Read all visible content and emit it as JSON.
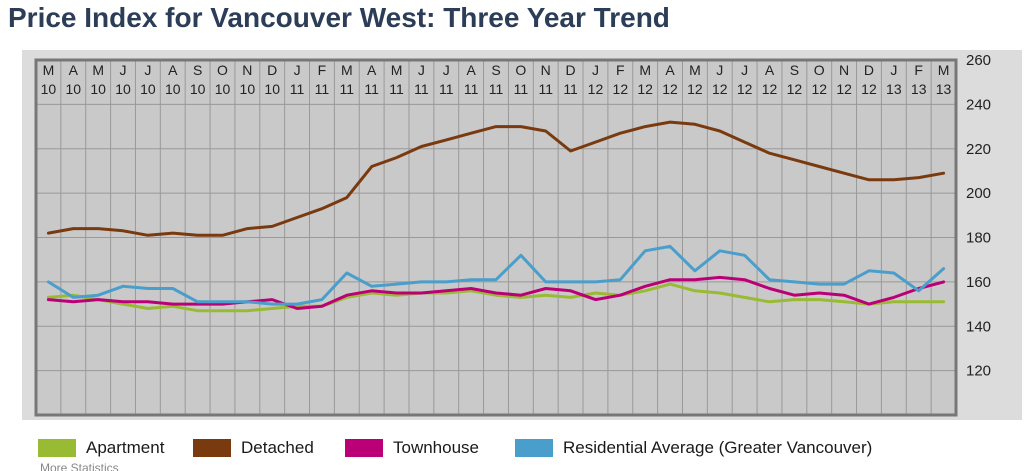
{
  "title": "Price Index for Vancouver West: Three Year Trend",
  "footer_fragment": "More Statistics",
  "colors": {
    "page_bg": "#ffffff",
    "plot_bg": "#c9c9c9",
    "outer_bg": "#dcdcdc",
    "grid": "#999999",
    "frame": "#777777",
    "axis_text": "#222222",
    "title": "#2b3d57"
  },
  "chart_data": {
    "type": "line",
    "title": "Price Index for Vancouver West: Three Year Trend",
    "xlabel": "",
    "ylabel": "",
    "ylim": [
      100,
      260
    ],
    "yticks": [
      120,
      140,
      160,
      180,
      200,
      220,
      240,
      260
    ],
    "y_axis_side": "right",
    "x_axis_side": "top",
    "grid": true,
    "legend_position": "bottom",
    "x_tick_months": [
      "M",
      "A",
      "M",
      "J",
      "J",
      "A",
      "S",
      "O",
      "N",
      "D",
      "J",
      "F",
      "M",
      "A",
      "M",
      "J",
      "J",
      "A",
      "S",
      "O",
      "N",
      "D",
      "J",
      "F",
      "M",
      "A",
      "M",
      "J",
      "J",
      "A",
      "S",
      "O",
      "N",
      "D",
      "J",
      "F",
      "M"
    ],
    "x_tick_years": [
      "10",
      "10",
      "10",
      "10",
      "10",
      "10",
      "10",
      "10",
      "10",
      "10",
      "11",
      "11",
      "11",
      "11",
      "11",
      "11",
      "11",
      "11",
      "11",
      "11",
      "11",
      "11",
      "12",
      "12",
      "12",
      "12",
      "12",
      "12",
      "12",
      "12",
      "12",
      "12",
      "12",
      "12",
      "13",
      "13",
      "13"
    ],
    "series": [
      {
        "name": "Apartment",
        "color": "#99bb33",
        "values": [
          153,
          154,
          152,
          150,
          148,
          149,
          147,
          147,
          147,
          148,
          149,
          149,
          153,
          155,
          154,
          155,
          155,
          156,
          154,
          153,
          154,
          153,
          155,
          154,
          156,
          159,
          156,
          155,
          153,
          151,
          152,
          152,
          151,
          150,
          151,
          151,
          151
        ]
      },
      {
        "name": "Detached",
        "color": "#7a3a10",
        "values": [
          182,
          184,
          184,
          183,
          181,
          182,
          181,
          181,
          184,
          185,
          189,
          193,
          198,
          212,
          216,
          221,
          224,
          227,
          230,
          230,
          228,
          219,
          223,
          227,
          230,
          232,
          231,
          228,
          223,
          218,
          215,
          212,
          209,
          206,
          206,
          207,
          209
        ]
      },
      {
        "name": "Townhouse",
        "color": "#bb0077",
        "values": [
          152,
          151,
          152,
          151,
          151,
          150,
          150,
          150,
          151,
          152,
          148,
          149,
          154,
          156,
          155,
          155,
          156,
          157,
          155,
          154,
          157,
          156,
          152,
          154,
          158,
          161,
          161,
          162,
          161,
          157,
          154,
          155,
          154,
          150,
          153,
          157,
          160
        ]
      },
      {
        "name": "Residential Average (Greater Vancouver)",
        "color": "#4a9ecb",
        "values": [
          160,
          153,
          154,
          158,
          157,
          157,
          151,
          151,
          151,
          150,
          150,
          152,
          164,
          158,
          159,
          160,
          160,
          161,
          161,
          172,
          160,
          160,
          160,
          161,
          174,
          176,
          165,
          174,
          172,
          161,
          160,
          159,
          159,
          165,
          164,
          156,
          166
        ]
      }
    ]
  }
}
